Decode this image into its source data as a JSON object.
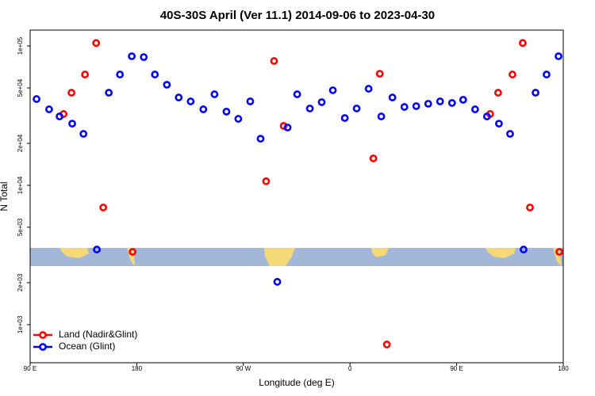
{
  "chart_data": {
    "type": "scatter",
    "title": "40S-30S April (Ver 11.1)   2014-09-06 to 2023-04-30",
    "x_label": "Longitude (deg E)",
    "y_label": "N Total",
    "log_y": true,
    "legend": "lower left",
    "xlim": [
      90,
      540
    ],
    "ylim": [
      533,
      130000
    ],
    "xticks": [
      {
        "value": 90,
        "label": "90 E"
      },
      {
        "value": 180,
        "label": "180"
      },
      {
        "value": 270,
        "label": "90 W"
      },
      {
        "value": 360,
        "label": "0"
      },
      {
        "value": 450,
        "label": "90 E"
      },
      {
        "value": 540,
        "label": "180"
      }
    ],
    "yticks": [
      {
        "value": 1000,
        "label": "1e+03"
      },
      {
        "value": 2000,
        "label": "2e+03"
      },
      {
        "value": 5000,
        "label": "5e+03"
      },
      {
        "value": 10000,
        "label": "1e+04"
      },
      {
        "value": 20000,
        "label": "2e+04"
      },
      {
        "value": 50000,
        "label": "5e+04"
      },
      {
        "value": 100000,
        "label": "1e+05"
      }
    ],
    "series": [
      {
        "name": "Land (Nadir&Glint)",
        "color": "#ff0000",
        "x": [
          118.2,
          124.9,
          136.3,
          145.7,
          151.7,
          176.5,
          289.2,
          295.9,
          304.0,
          379.7,
          385.1,
          391.1,
          478.3,
          485.0,
          497.1,
          505.8,
          511.9,
          536.7
        ],
        "values": [
          32500,
          46200,
          62400,
          105000,
          6930,
          3330,
          10700,
          78000,
          26700,
          15600,
          63200,
          721,
          32500,
          46200,
          62400,
          105000,
          6930,
          3330
        ]
      },
      {
        "name": "Ocean (Glint)",
        "color": "#0000ff",
        "x": [
          95.4,
          106.0,
          114.8,
          125.5,
          135.0,
          146.3,
          156.4,
          165.8,
          175.8,
          185.9,
          195.3,
          205.4,
          215.4,
          225.5,
          236.2,
          245.6,
          255.7,
          265.7,
          275.8,
          284.5,
          298.6,
          307.3,
          315.4,
          326.1,
          336.1,
          345.5,
          355.6,
          365.6,
          375.7,
          386.4,
          395.8,
          405.9,
          415.9,
          426.0,
          436.0,
          446.1,
          455.5,
          465.6,
          475.6,
          485.7,
          495.1,
          506.5,
          516.6,
          525.9,
          536.0
        ],
        "values": [
          41600,
          35100,
          31200,
          27700,
          23400,
          3460,
          46200,
          62400,
          84400,
          83200,
          62400,
          52700,
          42700,
          40000,
          35100,
          45000,
          33800,
          30000,
          40000,
          21600,
          2030,
          26000,
          45000,
          35600,
          39500,
          48100,
          30400,
          35600,
          49300,
          31200,
          42700,
          36500,
          37000,
          38500,
          40000,
          39000,
          41100,
          35100,
          31200,
          27700,
          23400,
          3460,
          46200,
          62400,
          84400
        ]
      }
    ]
  }
}
